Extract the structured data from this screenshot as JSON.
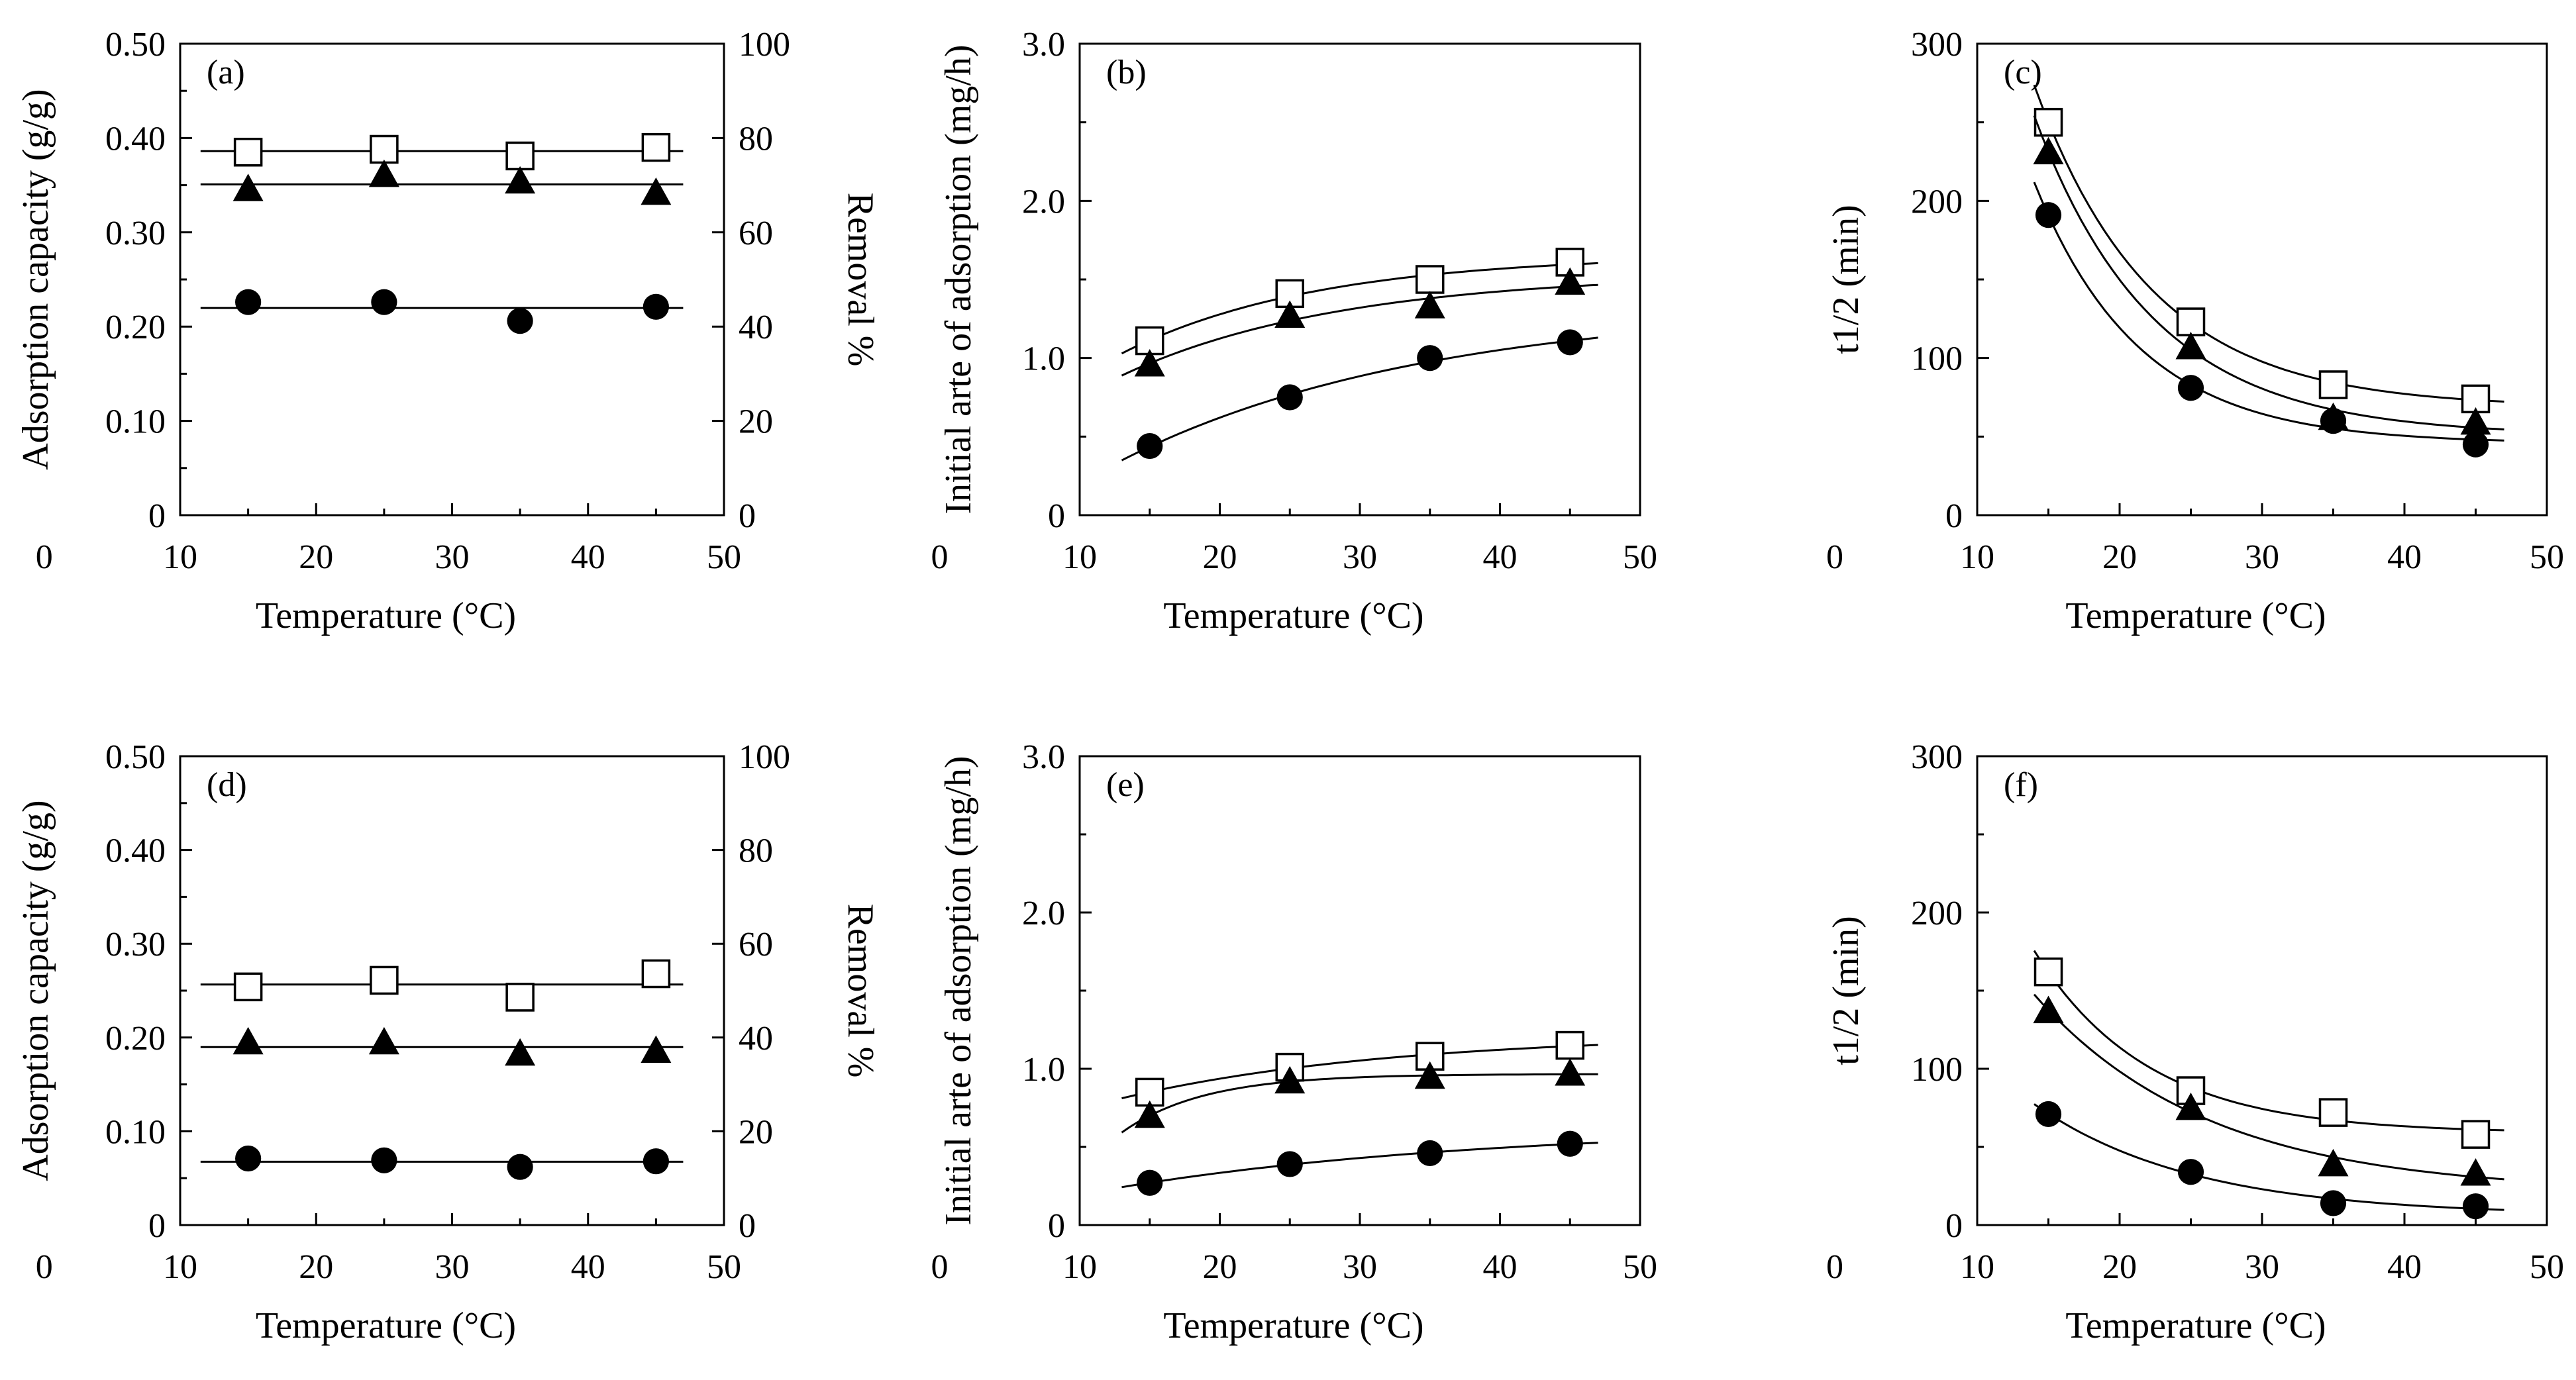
{
  "chart_data": [
    {
      "type": "scatter",
      "panel": "(a)",
      "xlabel": "Temperature (°C)",
      "ylabel": "Adsorption capacity (g/g)",
      "y2label": "Removal %",
      "xlim": [
        0,
        50
      ],
      "ylim": [
        0,
        0.5
      ],
      "y2lim": [
        0,
        100
      ],
      "xticks": [
        "0",
        "10",
        "20",
        "30",
        "40",
        "50"
      ],
      "yticks": [
        "0",
        "0.10",
        "0.20",
        "0.30",
        "0.40",
        "0.50"
      ],
      "y2ticks": [
        "0",
        "20",
        "40",
        "60",
        "80",
        "100"
      ],
      "fit": "flat",
      "series": [
        {
          "marker": "open-square",
          "x": [
            15,
            25,
            35,
            45
          ],
          "y": [
            0.385,
            0.388,
            0.381,
            0.39
          ]
        },
        {
          "marker": "filled-triangle",
          "x": [
            15,
            25,
            35,
            45
          ],
          "y": [
            0.346,
            0.361,
            0.354,
            0.342
          ]
        },
        {
          "marker": "filled-circle",
          "x": [
            15,
            25,
            35,
            45
          ],
          "y": [
            0.226,
            0.226,
            0.206,
            0.221
          ]
        }
      ]
    },
    {
      "type": "scatter",
      "panel": "(b)",
      "xlabel": "Temperature (°C)",
      "ylabel": "Initial arte of adsorption (mg/h)",
      "xlim": [
        0,
        50
      ],
      "ylim": [
        0,
        3.0
      ],
      "xticks": [
        "0",
        "10",
        "20",
        "30",
        "40",
        "50"
      ],
      "yticks": [
        "0",
        "1.0",
        "2.0",
        "3.0"
      ],
      "fit": "saturating",
      "series": [
        {
          "marker": "open-square",
          "x": [
            15,
            25,
            35,
            45
          ],
          "y": [
            1.11,
            1.41,
            1.5,
            1.61
          ]
        },
        {
          "marker": "filled-triangle",
          "x": [
            15,
            25,
            35,
            45
          ],
          "y": [
            0.96,
            1.27,
            1.33,
            1.48
          ]
        },
        {
          "marker": "filled-circle",
          "x": [
            15,
            25,
            35,
            45
          ],
          "y": [
            0.44,
            0.75,
            1.0,
            1.1
          ]
        }
      ]
    },
    {
      "type": "scatter",
      "panel": "(c)",
      "xlabel": "Temperature (°C)",
      "ylabel": "t1/2 (min)",
      "xlim": [
        0,
        50
      ],
      "ylim": [
        0,
        300
      ],
      "xticks": [
        "0",
        "10",
        "20",
        "30",
        "40",
        "50"
      ],
      "yticks": [
        "0",
        "100",
        "200",
        "300"
      ],
      "fit": "decay",
      "series": [
        {
          "marker": "open-square",
          "x": [
            15,
            25,
            35,
            45
          ],
          "y": [
            250,
            123,
            83,
            74
          ]
        },
        {
          "marker": "filled-triangle",
          "x": [
            15,
            25,
            35,
            45
          ],
          "y": [
            231,
            107,
            62,
            59
          ]
        },
        {
          "marker": "filled-circle",
          "x": [
            15,
            25,
            35,
            45
          ],
          "y": [
            191,
            81,
            60,
            45
          ]
        }
      ]
    },
    {
      "type": "scatter",
      "panel": "(d)",
      "xlabel": "Temperature (°C)",
      "ylabel": "Adsorption capacity (g/g)",
      "y2label": "Removal %",
      "xlim": [
        0,
        50
      ],
      "ylim": [
        0,
        0.5
      ],
      "y2lim": [
        0,
        100
      ],
      "xticks": [
        "0",
        "10",
        "20",
        "30",
        "40",
        "50"
      ],
      "yticks": [
        "0",
        "0.10",
        "0.20",
        "0.30",
        "0.40",
        "0.50"
      ],
      "y2ticks": [
        "0",
        "20",
        "40",
        "60",
        "80",
        "100"
      ],
      "fit": "flat",
      "series": [
        {
          "marker": "open-square",
          "x": [
            15,
            25,
            35,
            45
          ],
          "y": [
            0.254,
            0.261,
            0.243,
            0.268
          ]
        },
        {
          "marker": "filled-triangle",
          "x": [
            15,
            25,
            35,
            45
          ],
          "y": [
            0.195,
            0.195,
            0.183,
            0.186
          ]
        },
        {
          "marker": "filled-circle",
          "x": [
            15,
            25,
            35,
            45
          ],
          "y": [
            0.071,
            0.069,
            0.062,
            0.068
          ]
        }
      ]
    },
    {
      "type": "scatter",
      "panel": "(e)",
      "xlabel": "Temperature (°C)",
      "ylabel": "Initial arte of adsorption (mg/h)",
      "xlim": [
        0,
        50
      ],
      "ylim": [
        0,
        3.0
      ],
      "xticks": [
        "0",
        "10",
        "20",
        "30",
        "40",
        "50"
      ],
      "yticks": [
        "0",
        "1.0",
        "2.0",
        "3.0"
      ],
      "fit": "saturating",
      "series": [
        {
          "marker": "open-square",
          "x": [
            15,
            25,
            35,
            45
          ],
          "y": [
            0.85,
            1.01,
            1.08,
            1.15
          ]
        },
        {
          "marker": "filled-triangle",
          "x": [
            15,
            25,
            35,
            45
          ],
          "y": [
            0.7,
            0.92,
            0.95,
            0.97
          ]
        },
        {
          "marker": "filled-circle",
          "x": [
            15,
            25,
            35,
            45
          ],
          "y": [
            0.27,
            0.39,
            0.46,
            0.52
          ]
        }
      ]
    },
    {
      "type": "scatter",
      "panel": "(f)",
      "xlabel": "Temperature (°C)",
      "ylabel": "t1/2 (min)",
      "xlim": [
        0,
        50
      ],
      "ylim": [
        0,
        300
      ],
      "xticks": [
        "0",
        "10",
        "20",
        "30",
        "40",
        "50"
      ],
      "yticks": [
        "0",
        "100",
        "200",
        "300"
      ],
      "fit": "decay",
      "series": [
        {
          "marker": "open-square",
          "x": [
            15,
            25,
            35,
            45
          ],
          "y": [
            162,
            86,
            72,
            58
          ]
        },
        {
          "marker": "filled-triangle",
          "x": [
            15,
            25,
            35,
            45
          ],
          "y": [
            137,
            75,
            39,
            33
          ]
        },
        {
          "marker": "filled-circle",
          "x": [
            15,
            25,
            35,
            45
          ],
          "y": [
            71,
            34,
            14,
            12
          ]
        }
      ]
    }
  ]
}
